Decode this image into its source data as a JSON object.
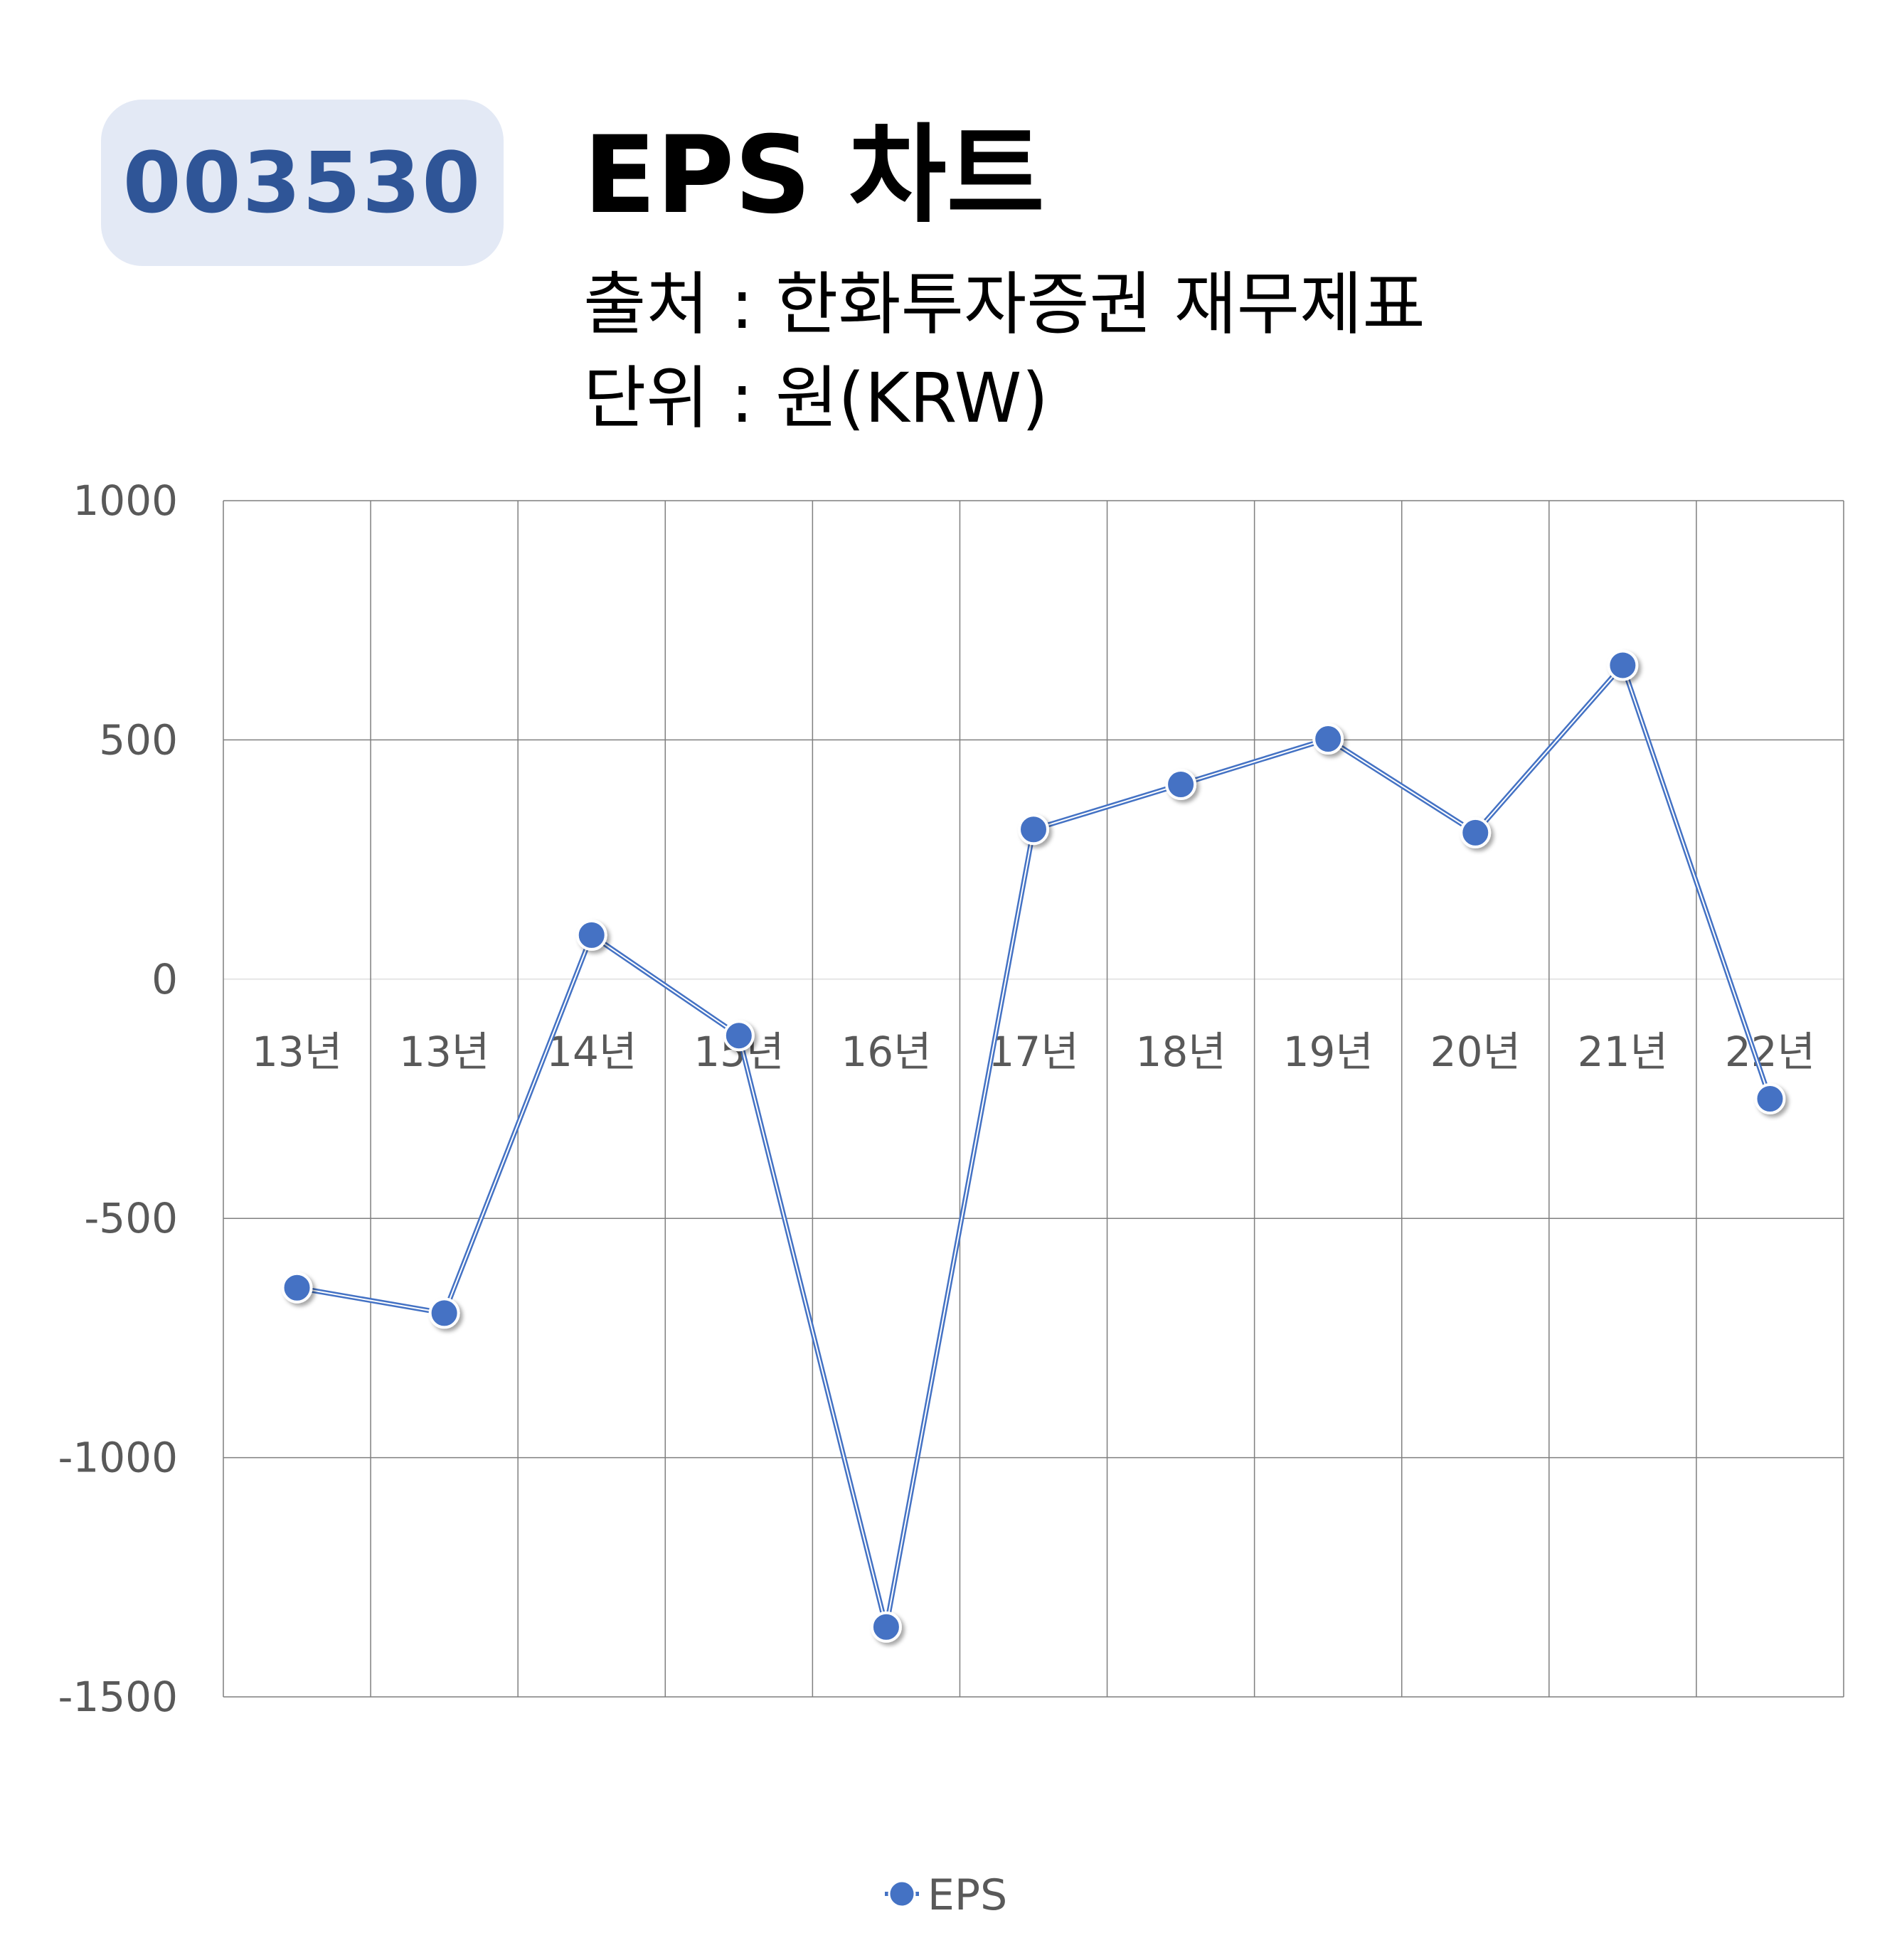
{
  "header": {
    "code": "003530",
    "title": "EPS 차트",
    "source": "출처 : 한화투자증권 재무제표",
    "unit": "단위 : 원(KRW)"
  },
  "colors": {
    "series": "#4472c4",
    "badge_bg": "#e3e9f5",
    "badge_text": "#2f5597",
    "grid": "#7f7f7f",
    "tick_text": "#595959"
  },
  "chart_data": {
    "type": "line",
    "categories": [
      "13년",
      "13년",
      "14년",
      "15년",
      "16년",
      "17년",
      "18년",
      "19년",
      "20년",
      "21년",
      "22년"
    ],
    "series": [
      {
        "name": "EPS",
        "values": [
          -645,
          -698,
          92,
          -118,
          -1354,
          313,
          407,
          502,
          306,
          656,
          -250
        ]
      }
    ],
    "ylim": [
      -1500,
      1000
    ],
    "yticks": [
      1000,
      500,
      0,
      -500,
      -1000,
      -1500
    ],
    "grid": true,
    "legend": "bottom"
  }
}
